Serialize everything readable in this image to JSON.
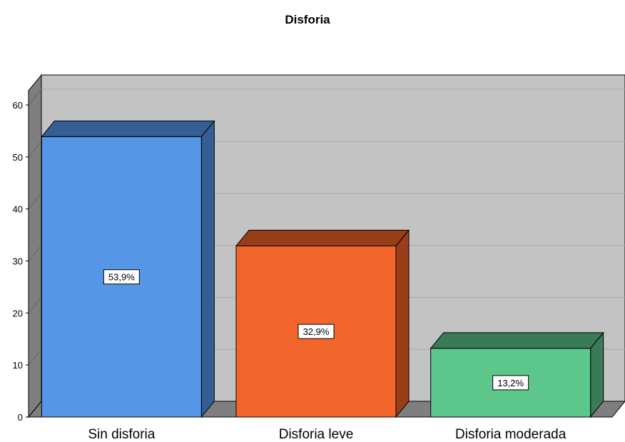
{
  "chart_data": {
    "type": "bar",
    "title": "Disforia",
    "xlabel": "",
    "ylabel": "",
    "ylim": [
      0,
      60
    ],
    "yticks": [
      0,
      10,
      20,
      30,
      40,
      50,
      60
    ],
    "categories": [
      "Sin disforia",
      "Disforia leve",
      "Disforia moderada"
    ],
    "values": [
      53.9,
      32.9,
      13.2
    ],
    "data_labels": [
      "53,9%",
      "32,9%",
      "13,2%"
    ],
    "colors": [
      {
        "front": "#5596E6",
        "top": "#355E94",
        "side": "#355E94"
      },
      {
        "front": "#F3662B",
        "top": "#9A3E1A",
        "side": "#9A3E1A"
      },
      {
        "front": "#5DC68B",
        "top": "#397B56",
        "side": "#397B56"
      }
    ],
    "grid": true,
    "style": "3d"
  }
}
